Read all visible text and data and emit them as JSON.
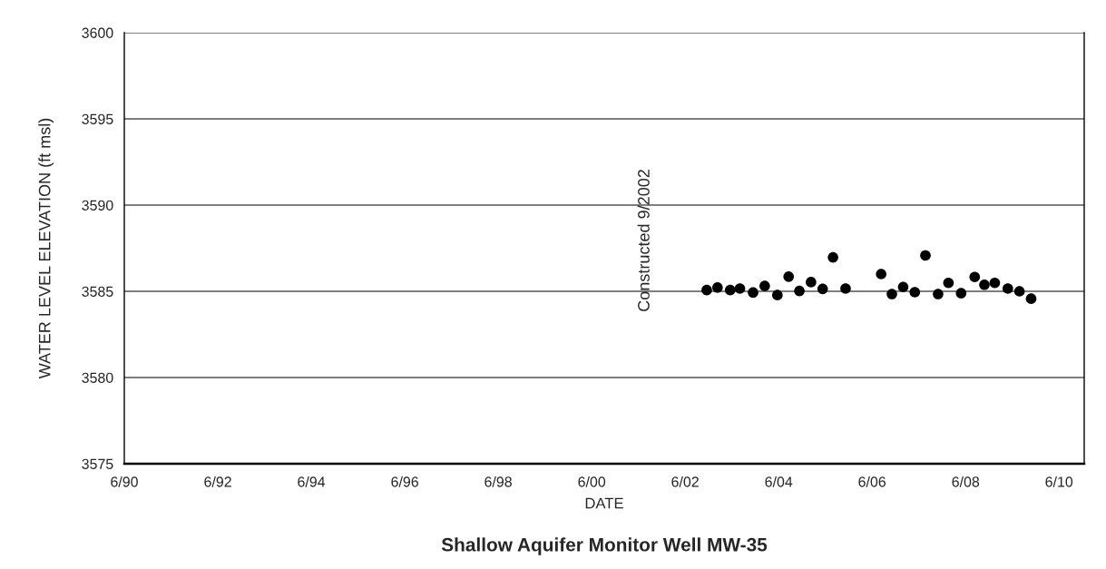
{
  "chart_data": {
    "type": "scatter",
    "title": "Shallow Aquifer Monitor Well MW-35",
    "xlabel": "DATE",
    "ylabel": "WATER LEVEL ELEVATION (ft msl)",
    "annotations": [
      "Constructed 9/2002"
    ],
    "x": [
      "2002-11-17",
      "2003-02-09",
      "2003-05-19",
      "2003-08-03",
      "2003-11-14",
      "2004-02-13",
      "2004-05-22",
      "2004-08-18",
      "2004-11-10",
      "2005-02-09",
      "2005-05-11",
      "2005-07-31",
      "2005-11-06",
      "2006-08-11",
      "2006-11-03",
      "2007-01-30",
      "2007-05-01",
      "2007-07-23",
      "2007-10-30",
      "2008-01-19",
      "2008-04-27",
      "2008-08-11",
      "2008-10-26",
      "2009-01-15",
      "2009-04-27",
      "2009-07-27",
      "2009-10-26"
    ],
    "series": [
      {
        "color": "#000000",
        "values": [
          3585.07,
          3585.22,
          3585.07,
          3585.16,
          3584.93,
          3585.31,
          3584.78,
          3585.85,
          3585.02,
          3585.53,
          3585.14,
          3586.97,
          3585.16,
          3586.0,
          3584.84,
          3585.25,
          3584.95,
          3587.08,
          3584.84,
          3585.49,
          3584.89,
          3585.83,
          3585.38,
          3585.49,
          3585.16,
          3585.0,
          3584.57
        ]
      }
    ],
    "xlim": [
      "1990-06-01",
      "2010-12-15"
    ],
    "xticks": [
      {
        "value": "1990-06-01",
        "label": "6/90"
      },
      {
        "value": "1992-06-01",
        "label": "6/92"
      },
      {
        "value": "1994-06-01",
        "label": "6/94"
      },
      {
        "value": "1996-06-01",
        "label": "6/96"
      },
      {
        "value": "1998-06-01",
        "label": "6/98"
      },
      {
        "value": "2000-06-01",
        "label": "6/00"
      },
      {
        "value": "2002-06-01",
        "label": "6/02"
      },
      {
        "value": "2004-06-01",
        "label": "6/04"
      },
      {
        "value": "2006-06-01",
        "label": "6/06"
      },
      {
        "value": "2008-06-01",
        "label": "6/08"
      },
      {
        "value": "2010-06-01",
        "label": "6/10"
      }
    ],
    "ylim": [
      3575,
      3600
    ],
    "yticks": [
      3575,
      3580,
      3585,
      3590,
      3595,
      3600
    ],
    "grid": "y",
    "legend": false,
    "marker": "circle"
  }
}
